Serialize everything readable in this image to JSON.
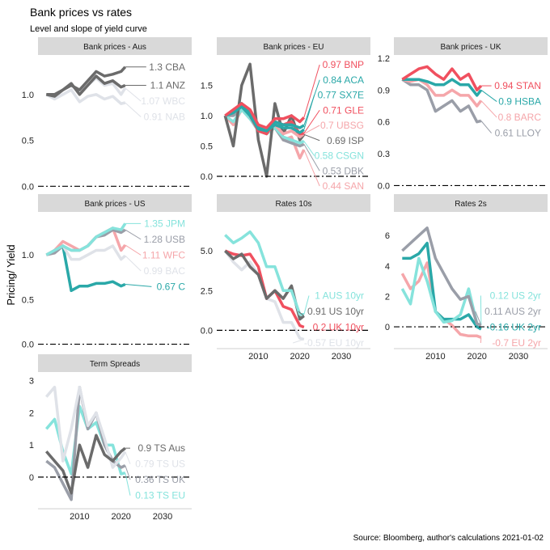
{
  "title": "Bank prices vs rates",
  "subtitle": "Level and slope of yield curve",
  "ylabel": "Pricing/ Yield",
  "caption": "Source: Bloomberg, author's calculations 2021-01-02",
  "colors": {
    "dark": "#6b6b6b",
    "light": "#dfe2e8",
    "red": "#f0505f",
    "teal": "#2aa8a8",
    "pink": "#f5a6aa",
    "cyan": "#86e3dc",
    "gray": "#9a9ea8"
  },
  "chart_data": {
    "type": "line",
    "xlim": [
      2000,
      2037
    ],
    "x": [
      2002,
      2004,
      2006,
      2008,
      2010,
      2012,
      2014,
      2016,
      2018,
      2020,
      2021
    ],
    "xticks": [
      2010,
      2020,
      2030
    ],
    "panels": [
      {
        "title": "Bank prices - Aus",
        "ylim": [
          -0.05,
          1.43
        ],
        "yticks": [
          "0.0",
          "0.5",
          "1.0"
        ],
        "ytick_values": [
          0,
          0.5,
          1.0
        ],
        "series": [
          {
            "name": "CBA",
            "label": "1.3 CBA",
            "color": "dark",
            "values": [
              1.0,
              1.0,
              1.05,
              1.1,
              1.05,
              1.15,
              1.25,
              1.2,
              1.22,
              1.25,
              1.3
            ]
          },
          {
            "name": "ANZ",
            "label": "1.1 ANZ",
            "color": "dark",
            "values": [
              1.0,
              0.98,
              1.05,
              1.12,
              1.0,
              1.1,
              1.2,
              1.12,
              1.15,
              1.08,
              1.1
            ]
          },
          {
            "name": "WBC",
            "label": "1.07 WBC",
            "color": "light",
            "values": [
              1.0,
              0.97,
              1.05,
              1.1,
              1.02,
              1.1,
              1.18,
              1.1,
              1.12,
              1.0,
              1.07
            ]
          },
          {
            "name": "NAB",
            "label": "0.91 NAB",
            "color": "light",
            "values": [
              1.0,
              0.95,
              1.0,
              1.05,
              0.92,
              0.98,
              1.0,
              0.95,
              0.98,
              0.9,
              0.91
            ]
          }
        ]
      },
      {
        "title": "Bank prices - EU",
        "ylim": [
          -0.24,
          2.0
        ],
        "yticks": [
          "0.0",
          "0.5",
          "1.0",
          "1.5"
        ],
        "ytick_values": [
          0,
          0.5,
          1.0,
          1.5
        ],
        "series": [
          {
            "name": "BNP",
            "label": "0.97 BNP",
            "color": "red",
            "values": [
              1.0,
              1.1,
              1.2,
              1.1,
              0.85,
              0.8,
              0.95,
              0.95,
              1.0,
              0.9,
              0.97
            ]
          },
          {
            "name": "ACA",
            "label": "0.84 ACA",
            "color": "teal",
            "values": [
              1.0,
              1.05,
              1.2,
              1.05,
              0.8,
              0.75,
              0.9,
              0.85,
              0.85,
              0.8,
              0.84
            ]
          },
          {
            "name": "SX7E",
            "label": "0.77 SX7E",
            "color": "teal",
            "values": [
              1.0,
              1.05,
              1.15,
              1.0,
              0.78,
              0.75,
              0.85,
              0.8,
              0.8,
              0.72,
              0.77
            ]
          },
          {
            "name": "GLE",
            "label": "0.71 GLE",
            "color": "red",
            "values": [
              1.0,
              1.05,
              1.2,
              1.0,
              0.75,
              0.7,
              0.9,
              0.85,
              0.9,
              0.7,
              0.71
            ]
          },
          {
            "name": "UBSG",
            "label": "0.7 UBSG",
            "color": "pink",
            "values": [
              1.0,
              1.05,
              1.2,
              1.0,
              0.8,
              0.75,
              0.85,
              0.7,
              0.75,
              0.65,
              0.7
            ]
          },
          {
            "name": "ISP",
            "label": "0.69 ISP",
            "color": "dark",
            "values": [
              1.0,
              0.5,
              1.5,
              1.85,
              0.6,
              0.0,
              1.2,
              0.7,
              1.0,
              0.6,
              0.69
            ]
          },
          {
            "name": "CSGN",
            "label": "0.58 CSGN",
            "color": "cyan",
            "values": [
              1.0,
              0.9,
              1.1,
              0.95,
              0.75,
              0.7,
              0.8,
              0.65,
              0.6,
              0.55,
              0.58
            ]
          },
          {
            "name": "DBK",
            "label": "0.53 DBK",
            "color": "gray",
            "values": [
              1.0,
              1.0,
              1.1,
              1.0,
              0.8,
              0.75,
              0.8,
              0.6,
              0.55,
              0.5,
              0.53
            ]
          },
          {
            "name": "SAN",
            "label": "0.44 SAN",
            "color": "pink",
            "values": [
              1.0,
              0.85,
              1.1,
              0.95,
              0.8,
              0.7,
              0.85,
              0.6,
              0.65,
              0.3,
              0.44
            ]
          }
        ]
      },
      {
        "title": "Bank prices - UK",
        "ylim": [
          -0.05,
          1.23
        ],
        "yticks": [
          "0.0",
          "0.3",
          "0.6",
          "0.9",
          "1.2"
        ],
        "ytick_values": [
          0,
          0.3,
          0.6,
          0.9,
          1.2
        ],
        "series": [
          {
            "name": "STAN",
            "label": "0.94 STAN",
            "color": "red",
            "values": [
              1.0,
              1.05,
              1.1,
              1.12,
              1.05,
              1.0,
              1.1,
              1.0,
              1.05,
              0.9,
              0.94
            ]
          },
          {
            "name": "HSBA",
            "label": "0.9 HSBA",
            "color": "teal",
            "values": [
              1.0,
              1.0,
              1.0,
              0.98,
              0.95,
              0.95,
              1.0,
              0.95,
              0.95,
              0.85,
              0.9
            ]
          },
          {
            "name": "BARC",
            "label": "0.8 BARC",
            "color": "pink",
            "values": [
              1.0,
              0.98,
              1.0,
              0.95,
              0.85,
              0.85,
              0.9,
              0.85,
              0.85,
              0.75,
              0.8
            ]
          },
          {
            "name": "LLOY",
            "label": "0.61 LLOY",
            "color": "gray",
            "values": [
              1.0,
              0.95,
              0.95,
              0.9,
              0.7,
              0.75,
              0.8,
              0.7,
              0.75,
              0.6,
              0.61
            ]
          }
        ]
      },
      {
        "title": "Bank prices - US",
        "ylim": [
          -0.04,
          1.48
        ],
        "yticks": [
          "0.0",
          "0.5",
          "1.0"
        ],
        "ytick_values": [
          0,
          0.5,
          1.0
        ],
        "series": [
          {
            "name": "JPM",
            "label": "1.35 JPM",
            "color": "cyan",
            "values": [
              1.0,
              1.05,
              1.1,
              1.05,
              1.05,
              1.1,
              1.2,
              1.25,
              1.3,
              1.28,
              1.35
            ]
          },
          {
            "name": "USB",
            "label": "1.28 USB",
            "color": "gray",
            "values": [
              1.0,
              1.02,
              1.1,
              1.05,
              1.05,
              1.1,
              1.2,
              1.22,
              1.28,
              1.25,
              1.28
            ]
          },
          {
            "name": "WFC",
            "label": "1.11 WFC",
            "color": "pink",
            "values": [
              1.0,
              1.05,
              1.15,
              1.1,
              1.05,
              1.1,
              1.2,
              1.25,
              1.3,
              1.05,
              1.11
            ]
          },
          {
            "name": "BAC",
            "label": "0.99 BAC",
            "color": "light",
            "values": [
              1.0,
              1.05,
              1.1,
              0.95,
              0.95,
              1.0,
              1.05,
              1.05,
              1.1,
              0.95,
              0.99
            ]
          },
          {
            "name": "C",
            "label": "0.67 C",
            "color": "teal",
            "values": [
              1.0,
              1.05,
              1.1,
              0.6,
              0.65,
              0.65,
              0.68,
              0.68,
              0.7,
              0.65,
              0.67
            ]
          }
        ]
      },
      {
        "title": "Rates 10s",
        "ylim": [
          -1.1,
          7.45
        ],
        "yticks": [
          "0.0",
          "2.5",
          "5.0"
        ],
        "ytick_values": [
          0,
          2.5,
          5.0
        ],
        "series": [
          {
            "name": "AUS 10yr",
            "label": "1 AUS 10yr",
            "color": "cyan",
            "values": [
              6,
              5.5,
              5.8,
              6.2,
              5.5,
              4,
              4,
              2.5,
              2.5,
              1,
              1
            ]
          },
          {
            "name": "US 10yr",
            "label": "0.91 US 10yr",
            "color": "dark",
            "values": [
              5,
              4.5,
              4.8,
              4,
              3.5,
              2,
              2.5,
              2,
              2.8,
              0.7,
              0.91
            ]
          },
          {
            "name": "UK 10yr",
            "label": "0.2 UK 10yr",
            "color": "red",
            "values": [
              5,
              4.8,
              4.7,
              4.8,
              4,
              2,
              2.5,
              1.5,
              1.3,
              0.3,
              0.2
            ]
          },
          {
            "name": "EU 10yr",
            "label": "-0.57 EU 10yr",
            "color": "light",
            "values": [
              5,
              4.3,
              3.8,
              4.3,
              3.5,
              2,
              1.8,
              0.5,
              0.5,
              -0.5,
              -0.57
            ]
          }
        ]
      },
      {
        "title": "Rates 2s",
        "ylim": [
          -1.38,
          7.55
        ],
        "yticks": [
          "0",
          "2",
          "4",
          "6"
        ],
        "ytick_values": [
          0,
          2,
          4,
          6
        ],
        "series": [
          {
            "name": "AUS 2yr",
            "label": "0.11 AUS 2yr",
            "color": "gray",
            "values": [
              5,
              5.5,
              6,
              6.5,
              4.5,
              3.5,
              2.5,
              1.8,
              2,
              0.2,
              0.11
            ]
          },
          {
            "name": "US 2yr",
            "label": "0.12 US 2yr",
            "color": "cyan",
            "values": [
              2.5,
              1.5,
              4.5,
              3,
              1,
              0.3,
              0.4,
              0.8,
              2.5,
              0.2,
              0.12
            ]
          },
          {
            "name": "UK 2yr",
            "label": "-0.16 UK 2yr",
            "color": "teal",
            "values": [
              4.5,
              4.5,
              4.8,
              5.5,
              1,
              0.5,
              0.5,
              0.5,
              0.8,
              0.0,
              -0.16
            ]
          },
          {
            "name": "EU 2yr",
            "label": "-0.7 EU 2yr",
            "color": "pink",
            "values": [
              3.5,
              2.5,
              3,
              4.2,
              1,
              0.5,
              0.1,
              -0.5,
              -0.6,
              -0.6,
              -0.7
            ]
          }
        ]
      },
      {
        "title": "Term Spreads",
        "ylim": [
          -0.96,
          3.27
        ],
        "yticks": [
          "0",
          "1",
          "2",
          "3"
        ],
        "ytick_values": [
          0,
          1,
          2,
          3
        ],
        "series": [
          {
            "name": "TS Aus",
            "label": "0.9 TS Aus",
            "color": "dark",
            "values": [
              0.8,
              0.5,
              0.2,
              -0.5,
              1,
              0.3,
              1.3,
              0.7,
              0.5,
              0.8,
              0.9
            ]
          },
          {
            "name": "TS US",
            "label": "0.79 TS US",
            "color": "light",
            "values": [
              2.5,
              2.8,
              0.5,
              1.5,
              2.8,
              1.6,
              2,
              1.2,
              0.3,
              0.6,
              0.79
            ]
          },
          {
            "name": "TS UK",
            "label": "0.36 TS UK",
            "color": "gray",
            "values": [
              0.5,
              0.3,
              -0.2,
              -0.7,
              2.8,
              1.5,
              2,
              1,
              0.5,
              0.3,
              0.36
            ]
          },
          {
            "name": "TS EU",
            "label": "0.13 TS EU",
            "color": "cyan",
            "values": [
              1.5,
              1.8,
              0.8,
              0.1,
              2.2,
              1.5,
              1.7,
              1,
              1,
              0.1,
              0.13
            ]
          }
        ]
      }
    ]
  }
}
